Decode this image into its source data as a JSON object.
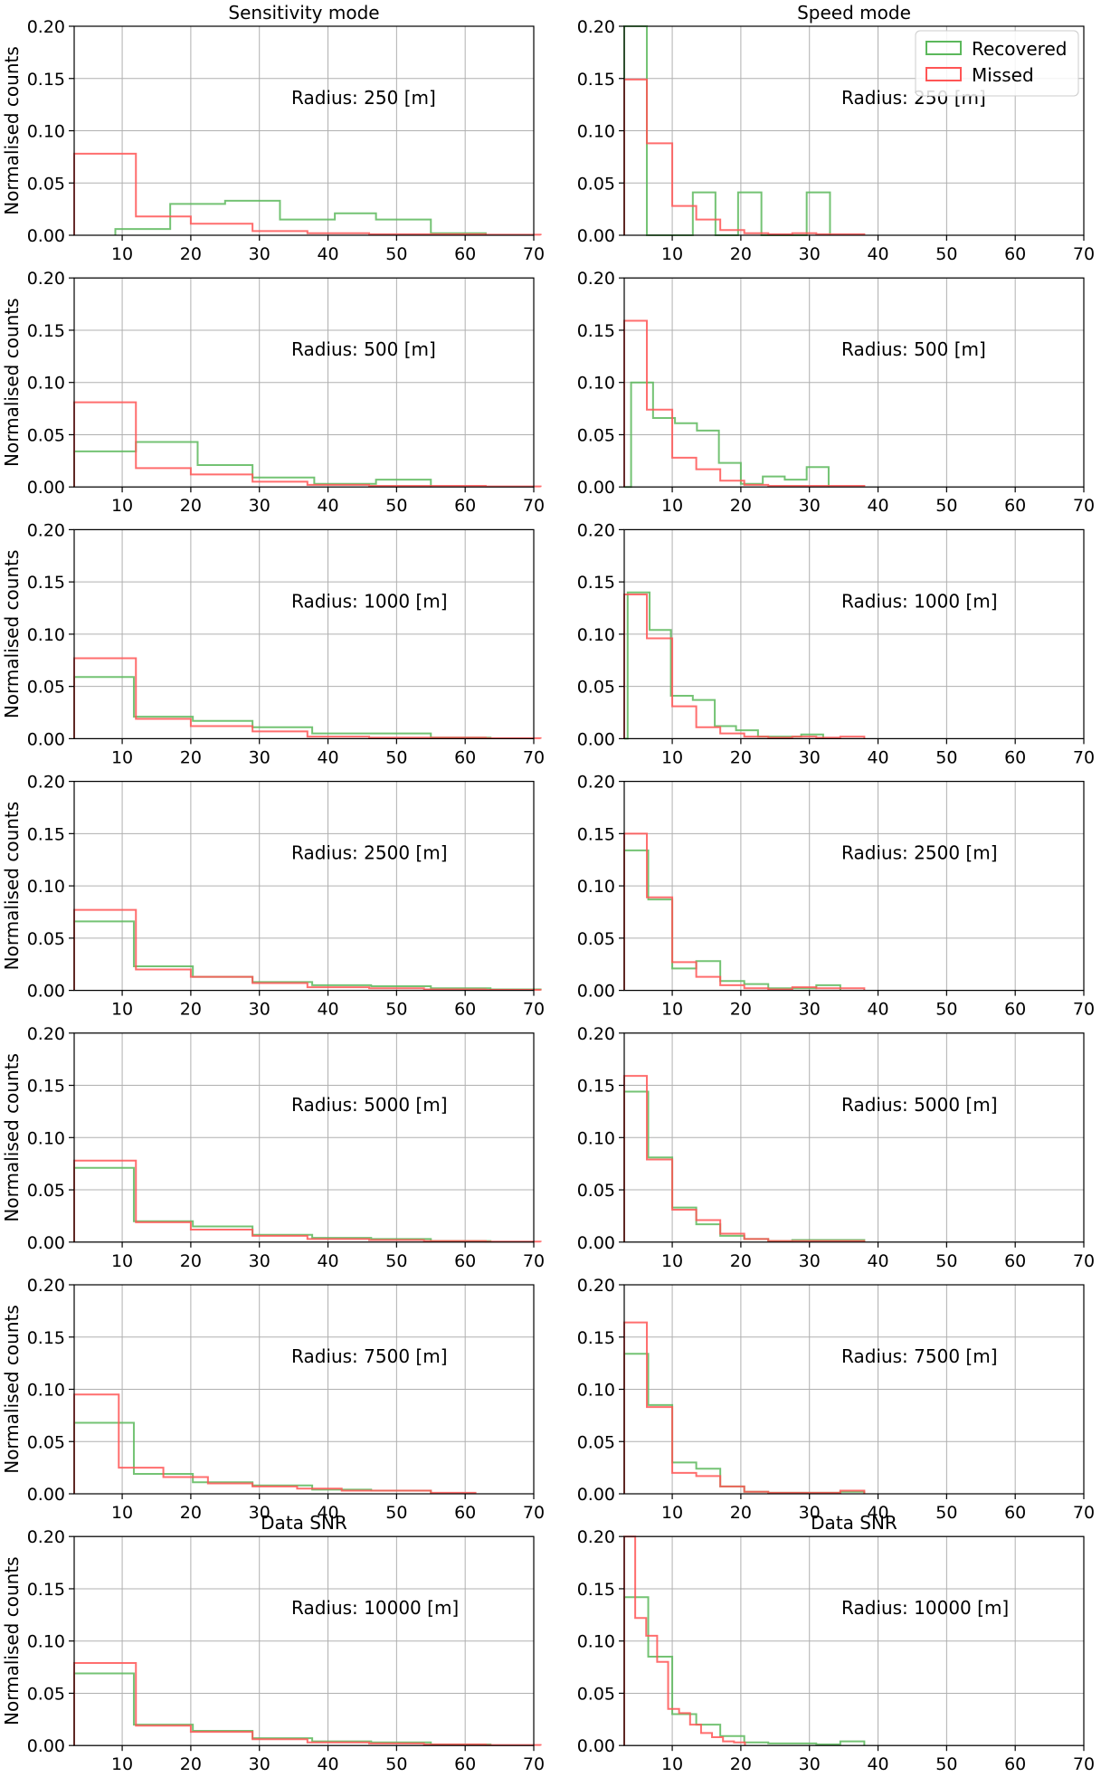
{
  "colors": {
    "recovered": "#5cb85c",
    "missed": "#ff5555"
  },
  "chart_data": {
    "type": "histogram",
    "layout": "7 rows x 2 columns",
    "columns": [
      {
        "title": "Sensitivity mode",
        "xlim": [
          3,
          70
        ]
      },
      {
        "title": "Speed mode",
        "xlim": [
          3,
          70
        ]
      }
    ],
    "ylabel": "Normalised counts",
    "xlabel": "Data SNR",
    "ylim": [
      0,
      0.2
    ],
    "yticks": [
      "0.00",
      "0.05",
      "0.10",
      "0.15",
      "0.20"
    ],
    "xticks": [
      "10",
      "20",
      "30",
      "40",
      "50",
      "60",
      "70"
    ],
    "grid": true,
    "legend": {
      "placement": "top-right of Speed mode row 1",
      "entries": [
        "Recovered",
        "Missed"
      ]
    },
    "rows": [
      {
        "radius_label": "Radius: 250 [m]",
        "sensitivity": {
          "recovered": {
            "edges": [
              9,
              17,
              25,
              33,
              41,
              47,
              55,
              63
            ],
            "values": [
              0.006,
              0.03,
              0.033,
              0.015,
              0.021,
              0.015,
              0.002
            ]
          },
          "missed": {
            "edges": [
              3,
              12,
              20,
              29,
              37,
              46,
              54,
              63,
              71
            ],
            "values": [
              0.078,
              0.018,
              0.011,
              0.004,
              0.002,
              0.001,
              0.001,
              0.0005
            ]
          }
        },
        "speed": {
          "recovered": {
            "edges": [
              3,
              6.3,
              9.6,
              13,
              16.3,
              19.6,
              23,
              26.3,
              29.6,
              33
            ],
            "values": [
              0.2,
              0,
              0,
              0.041,
              0,
              0.041,
              0,
              0,
              0.041
            ]
          },
          "missed": {
            "edges": [
              3,
              6.3,
              10,
              13.5,
              17,
              20.5,
              24,
              27.5,
              31,
              34.5,
              38
            ],
            "values": [
              0.149,
              0.088,
              0.028,
              0.015,
              0.005,
              0.002,
              0.001,
              0.002,
              0.001,
              0.001
            ]
          }
        }
      },
      {
        "radius_label": "Radius: 500 [m]",
        "sensitivity": {
          "recovered": {
            "edges": [
              3,
              12,
              21,
              29,
              38,
              47,
              55
            ],
            "values": [
              0.034,
              0.043,
              0.021,
              0.009,
              0.003,
              0.007
            ]
          },
          "missed": {
            "edges": [
              3,
              12,
              20,
              29,
              37,
              46,
              54,
              63,
              71
            ],
            "values": [
              0.081,
              0.018,
              0.012,
              0.005,
              0.002,
              0.001,
              0.001,
              0.0005
            ]
          }
        },
        "speed": {
          "recovered": {
            "edges": [
              3,
              4,
              7.2,
              10.4,
              13.6,
              16.8,
              20,
              23.2,
              26.4,
              29.6,
              32.8
            ],
            "values": [
              0,
              0.1,
              0.066,
              0.061,
              0.054,
              0.023,
              0.003,
              0.01,
              0.007,
              0.019
            ]
          },
          "missed": {
            "edges": [
              3,
              6.3,
              10,
              13.5,
              17,
              20.5,
              24,
              27.5,
              31,
              34.5,
              38
            ],
            "values": [
              0.159,
              0.074,
              0.028,
              0.017,
              0.006,
              0.002,
              0.001,
              0.001,
              0.001,
              0.001
            ]
          }
        }
      },
      {
        "radius_label": "Radius: 1000 [m]",
        "sensitivity": {
          "recovered": {
            "edges": [
              3,
              11.7,
              20.3,
              29,
              37.7,
              46.3,
              55,
              63.7
            ],
            "values": [
              0.059,
              0.021,
              0.017,
              0.011,
              0.005,
              0.005,
              0.001
            ]
          },
          "missed": {
            "edges": [
              3,
              12,
              20,
              29,
              37,
              46,
              54,
              63,
              71
            ],
            "values": [
              0.077,
              0.019,
              0.012,
              0.007,
              0.002,
              0.001,
              0.001,
              0.0005
            ]
          }
        },
        "speed": {
          "recovered": {
            "edges": [
              3,
              3.5,
              6.7,
              9.8,
              13,
              16.2,
              19.3,
              22.5,
              25.7,
              28.8,
              32
            ],
            "values": [
              0,
              0.14,
              0.104,
              0.041,
              0.037,
              0.012,
              0.008,
              0.002,
              0.002,
              0.004
            ]
          },
          "missed": {
            "edges": [
              3,
              6.3,
              10,
              13.5,
              17,
              20.5,
              24,
              27.5,
              31,
              34.5,
              38
            ],
            "values": [
              0.138,
              0.096,
              0.031,
              0.011,
              0.005,
              0.002,
              0.001,
              0.002,
              0.001,
              0.002
            ]
          }
        }
      },
      {
        "radius_label": "Radius: 2500 [m]",
        "sensitivity": {
          "recovered": {
            "edges": [
              3,
              11.7,
              20.3,
              29,
              37.7,
              46.3,
              55,
              63.7,
              71
            ],
            "values": [
              0.066,
              0.023,
              0.013,
              0.008,
              0.005,
              0.004,
              0.002,
              0.001
            ]
          },
          "missed": {
            "edges": [
              3,
              12,
              20,
              29,
              37,
              46,
              54,
              63,
              71
            ],
            "values": [
              0.077,
              0.02,
              0.013,
              0.007,
              0.003,
              0.002,
              0.001,
              0.0005
            ]
          }
        },
        "speed": {
          "recovered": {
            "edges": [
              3,
              6.5,
              10,
              13.5,
              17,
              20.5,
              24,
              27.5,
              31,
              34.5
            ],
            "values": [
              0.134,
              0.087,
              0.021,
              0.028,
              0.009,
              0.006,
              0.002,
              0.002,
              0.005
            ]
          },
          "missed": {
            "edges": [
              3,
              6.3,
              10,
              13.5,
              17,
              20.5,
              24,
              27.5,
              31,
              34.5,
              38
            ],
            "values": [
              0.15,
              0.089,
              0.027,
              0.013,
              0.005,
              0.002,
              0.001,
              0.003,
              0.002,
              0.002
            ]
          }
        }
      },
      {
        "radius_label": "Radius: 5000 [m]",
        "sensitivity": {
          "recovered": {
            "edges": [
              3,
              11.7,
              20.3,
              29,
              37.7,
              46.3,
              55,
              63.7
            ],
            "values": [
              0.071,
              0.02,
              0.015,
              0.007,
              0.004,
              0.003,
              0.001
            ]
          },
          "missed": {
            "edges": [
              3,
              12,
              20,
              29,
              37,
              46,
              54,
              63,
              71
            ],
            "values": [
              0.078,
              0.019,
              0.012,
              0.006,
              0.003,
              0.002,
              0.001,
              0.0005
            ]
          }
        },
        "speed": {
          "recovered": {
            "edges": [
              3,
              6.5,
              10,
              13.5,
              17,
              20.5,
              24,
              27.5,
              31,
              34.5,
              38
            ],
            "values": [
              0.144,
              0.081,
              0.033,
              0.017,
              0.006,
              0.003,
              0.001,
              0.002,
              0.002,
              0.002
            ]
          },
          "missed": {
            "edges": [
              3,
              6.3,
              10,
              13.5,
              17,
              20.5,
              24,
              27.5,
              31,
              34.5,
              38
            ],
            "values": [
              0.159,
              0.079,
              0.031,
              0.021,
              0.008,
              0.003,
              0.001,
              0.001,
              0.001,
              0.001
            ]
          }
        }
      },
      {
        "radius_label": "Radius: 7500 [m]",
        "sensitivity": {
          "recovered": {
            "edges": [
              3,
              11.7,
              20.3,
              29,
              37.7,
              46.3,
              55
            ],
            "values": [
              0.068,
              0.019,
              0.011,
              0.008,
              0.004,
              0.003
            ]
          },
          "missed": {
            "edges": [
              3,
              9.5,
              16,
              22.5,
              29,
              35.5,
              42,
              48.5,
              55,
              61.5
            ],
            "values": [
              0.095,
              0.025,
              0.016,
              0.01,
              0.007,
              0.005,
              0.003,
              0.003,
              0.001
            ]
          }
        },
        "speed": {
          "recovered": {
            "edges": [
              3,
              6.5,
              10,
              13.5,
              17,
              20.5,
              24,
              27.5,
              31,
              34.5,
              38
            ],
            "values": [
              0.134,
              0.085,
              0.03,
              0.024,
              0.007,
              0.002,
              0.001,
              0.001,
              0.001,
              0.002
            ]
          },
          "missed": {
            "edges": [
              3,
              6.3,
              10,
              13.5,
              17,
              20.5,
              24,
              27.5,
              31,
              34.5,
              38
            ],
            "values": [
              0.164,
              0.083,
              0.02,
              0.017,
              0.007,
              0.002,
              0.001,
              0.001,
              0.001,
              0.003
            ]
          }
        }
      },
      {
        "radius_label": "Radius: 10000 [m]",
        "sensitivity": {
          "recovered": {
            "edges": [
              3,
              11.7,
              20.3,
              29,
              37.7,
              46.3,
              55,
              63.7
            ],
            "values": [
              0.069,
              0.02,
              0.014,
              0.007,
              0.004,
              0.003,
              0.001
            ]
          },
          "missed": {
            "edges": [
              3,
              12,
              20,
              29,
              37,
              46,
              54,
              63,
              71
            ],
            "values": [
              0.079,
              0.019,
              0.013,
              0.006,
              0.003,
              0.002,
              0.001,
              0.0005
            ]
          }
        },
        "speed": {
          "recovered": {
            "edges": [
              3,
              6.5,
              10,
              13.5,
              17,
              20.5,
              24,
              27.5,
              31,
              34.5,
              38
            ],
            "values": [
              0.142,
              0.085,
              0.03,
              0.02,
              0.009,
              0.003,
              0.002,
              0.002,
              0.001,
              0.004
            ]
          },
          "missed": {
            "edges": [
              3,
              4.6,
              6.2,
              7.8,
              9.4,
              11,
              12.6,
              14.2,
              15.8,
              17.4,
              19,
              20.6
            ],
            "values": [
              0.2,
              0.122,
              0.105,
              0.08,
              0.035,
              0.031,
              0.02,
              0.012,
              0.008,
              0.004,
              0.003
            ]
          }
        }
      }
    ]
  }
}
